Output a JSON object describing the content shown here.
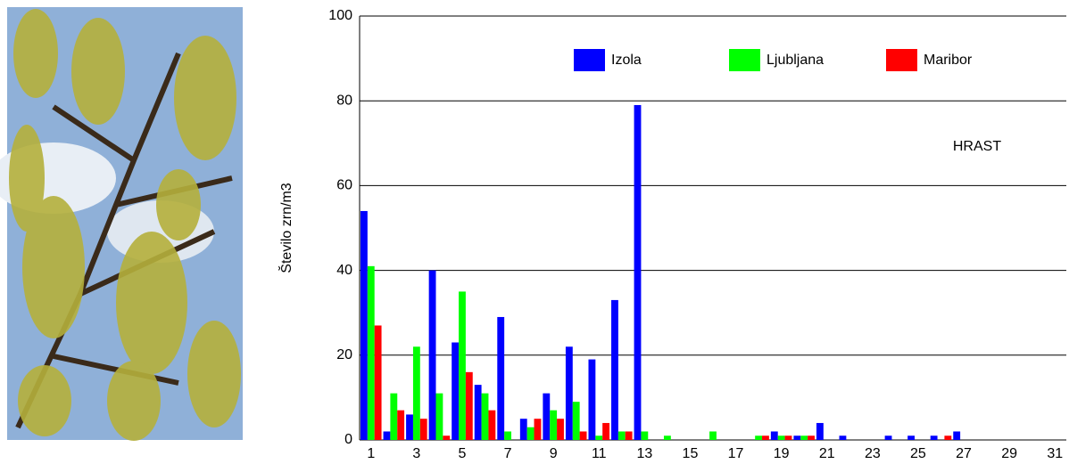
{
  "chart_data": {
    "type": "bar",
    "categories": [
      "1",
      null,
      "3",
      null,
      "5",
      null,
      "7",
      null,
      "9",
      null,
      "11",
      null,
      "13",
      null,
      "15",
      null,
      "17",
      null,
      "19",
      null,
      "21",
      null,
      "23",
      null,
      "25",
      null,
      "27",
      null,
      "29",
      null,
      "31"
    ],
    "series": [
      {
        "name": "Izola",
        "color": "#0000ff",
        "values": [
          54,
          2,
          6,
          40,
          23,
          13,
          29,
          5,
          11,
          22,
          19,
          33,
          79,
          0,
          0,
          0,
          0,
          0,
          2,
          1,
          4,
          1,
          0,
          1,
          1,
          1,
          2,
          0,
          0,
          0,
          0
        ]
      },
      {
        "name": "Ljubljana",
        "color": "#00ff00",
        "values": [
          41,
          11,
          22,
          11,
          35,
          11,
          2,
          3,
          7,
          9,
          1,
          2,
          2,
          1,
          0,
          2,
          0,
          1,
          1,
          1,
          0,
          0,
          0,
          0,
          0,
          0,
          0,
          0,
          0,
          0,
          0
        ]
      },
      {
        "name": "Maribor",
        "color": "#ff0000",
        "values": [
          27,
          7,
          5,
          1,
          16,
          7,
          0,
          5,
          5,
          2,
          4,
          2,
          0,
          0,
          0,
          0,
          0,
          1,
          1,
          1,
          0,
          0,
          0,
          0,
          0,
          1,
          0,
          0,
          0,
          0,
          0
        ]
      }
    ],
    "ylabel": "Število zrn/m3",
    "annotation": "HRAST",
    "ylim": [
      0,
      100
    ],
    "yticks": [
      0,
      20,
      40,
      60,
      80,
      100
    ],
    "grid": true,
    "legend": "top"
  }
}
